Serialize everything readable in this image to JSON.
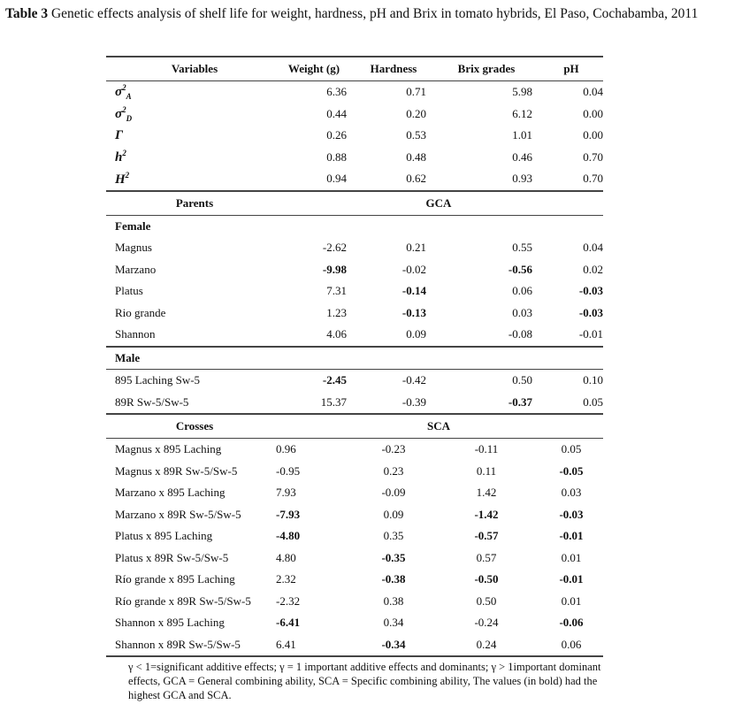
{
  "caption": {
    "label": "Table 3",
    "text": "Genetic effects analysis of shelf life for weight, hardness, pH and Brix in tomato hybrids, El Paso, Cochabamba, 2011"
  },
  "table": {
    "columns": [
      "Variables",
      "Weight (g)",
      "Hardness",
      "Brix grades",
      "pH"
    ],
    "variance_rows": [
      {
        "symbol": {
          "base": "σ",
          "sup": "2",
          "sub": "A"
        },
        "cells": [
          "6.36",
          "0.71",
          "5.98",
          "0.04"
        ]
      },
      {
        "symbol": {
          "base": "σ",
          "sup": "2",
          "sub": "D"
        },
        "cells": [
          "0.44",
          "0.20",
          "6.12",
          "0.00"
        ]
      },
      {
        "symbol": {
          "base": "Γ"
        },
        "cells": [
          "0.26",
          "0.53",
          "1.01",
          "0.00"
        ]
      },
      {
        "symbol": {
          "base": "h",
          "sup": "2"
        },
        "cells": [
          "0.88",
          "0.48",
          "0.46",
          "0.70"
        ]
      },
      {
        "symbol": {
          "base": "H",
          "sup": "2"
        },
        "cells": [
          "0.94",
          "0.62",
          "0.93",
          "0.70"
        ]
      }
    ],
    "parents": {
      "header": [
        "Parents",
        "GCA"
      ],
      "groups": [
        {
          "title": "Female",
          "rows": [
            {
              "label": "Magnus",
              "cells": [
                "-2.62",
                "0.21",
                "0.55",
                "0.04"
              ],
              "bold": []
            },
            {
              "label": "Marzano",
              "cells": [
                "-9.98",
                "-0.02",
                "-0.56",
                "0.02"
              ],
              "bold": [
                0,
                2
              ]
            },
            {
              "label": "Platus",
              "cells": [
                "7.31",
                "-0.14",
                "0.06",
                "-0.03"
              ],
              "bold": [
                1,
                3
              ]
            },
            {
              "label": "Rio grande",
              "cells": [
                "1.23",
                "-0.13",
                "0.03",
                "-0.03"
              ],
              "bold": [
                1,
                3
              ]
            },
            {
              "label": "Shannon",
              "cells": [
                "4.06",
                "0.09",
                "-0.08",
                "-0.01"
              ],
              "bold": []
            }
          ]
        },
        {
          "title": "Male",
          "rows": [
            {
              "label": "895 Laching Sw-5",
              "cells": [
                "-2.45",
                "-0.42",
                "0.50",
                "0.10"
              ],
              "bold": [
                0
              ]
            },
            {
              "label": "89R Sw-5/Sw-5",
              "cells": [
                "15.37",
                "-0.39",
                "-0.37",
                "0.05"
              ],
              "bold": [
                2
              ]
            }
          ]
        }
      ]
    },
    "crosses": {
      "header": [
        "Crosses",
        "SCA"
      ],
      "rows": [
        {
          "label": "Magnus x 895 Laching",
          "cells": [
            "0.96",
            "-0.23",
            "-0.11",
            "0.05"
          ],
          "bold": []
        },
        {
          "label": "Magnus x 89R Sw-5/Sw-5",
          "cells": [
            "-0.95",
            "0.23",
            "0.11",
            "-0.05"
          ],
          "bold": [
            3
          ]
        },
        {
          "label": "Marzano x 895 Laching",
          "cells": [
            "7.93",
            "-0.09",
            "1.42",
            "0.03"
          ],
          "bold": []
        },
        {
          "label": "Marzano x 89R Sw-5/Sw-5",
          "cells": [
            "-7.93",
            "0.09",
            "-1.42",
            "-0.03"
          ],
          "bold": [
            0,
            2,
            3
          ]
        },
        {
          "label": "Platus x 895 Laching",
          "cells": [
            "-4.80",
            "0.35",
            "-0.57",
            "-0.01"
          ],
          "bold": [
            0,
            2,
            3
          ]
        },
        {
          "label": "Platus x 89R Sw-5/Sw-5",
          "cells": [
            "4.80",
            "-0.35",
            "0.57",
            "0.01"
          ],
          "bold": [
            1
          ]
        },
        {
          "label": "Río grande x 895 Laching",
          "cells": [
            "2.32",
            "-0.38",
            "-0.50",
            "-0.01"
          ],
          "bold": [
            1,
            2,
            3
          ]
        },
        {
          "label": "Río grande x 89R Sw-5/Sw-5",
          "cells": [
            "-2.32",
            "0.38",
            "0.50",
            "0.01"
          ],
          "bold": []
        },
        {
          "label": "Shannon x 895 Laching",
          "cells": [
            "-6.41",
            "0.34",
            "-0.24",
            "-0.06"
          ],
          "bold": [
            0,
            3
          ]
        },
        {
          "label": "Shannon x 89R Sw-5/Sw-5",
          "cells": [
            "6.41",
            "-0.34",
            "0.24",
            "0.06"
          ],
          "bold": [
            1
          ]
        }
      ]
    }
  },
  "footnote": "γ < 1=significant additive effects; γ = 1 important additive effects and dominants;  γ > 1important dominant effects, GCA  = General combining ability, SCA = Specific combining ability, The values (in bold) had the highest GCA and SCA."
}
